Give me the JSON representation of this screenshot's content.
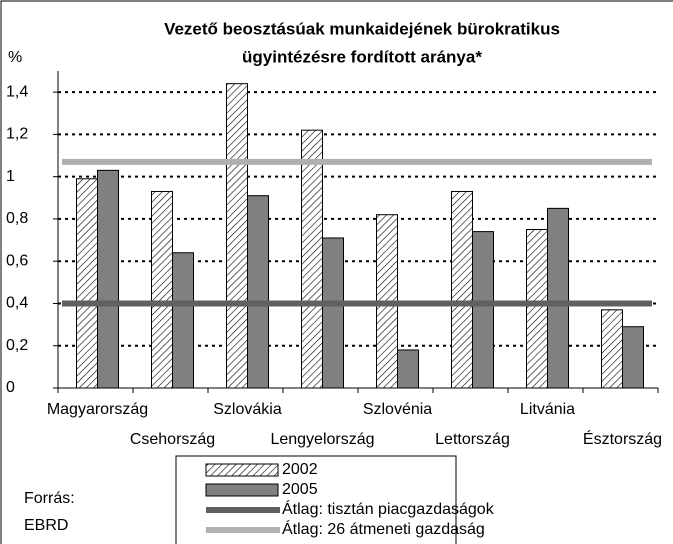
{
  "chart_data": {
    "type": "bar",
    "title": [
      "Vezető beosztásúak munkaidejének bürokratikus",
      "ügyintézésre fordított aránya*"
    ],
    "y_label": "%",
    "categories": [
      "Magyarország",
      "Csehország",
      "Szlovákia",
      "Lengyelország",
      "Szlovénia",
      "Lettország",
      "Litvánia",
      "Észtország"
    ],
    "series": [
      {
        "name": "2002",
        "color": "#ffffff",
        "values": [
          0.99,
          0.93,
          1.44,
          1.22,
          0.82,
          0.93,
          0.75,
          0.37
        ]
      },
      {
        "name": "2005",
        "color": "#808080",
        "values": [
          1.03,
          0.64,
          0.91,
          0.71,
          0.18,
          0.74,
          0.85,
          0.29
        ]
      }
    ],
    "reference_lines": [
      {
        "name": "Átlag: tisztán piacgazdaságok",
        "value": 0.4,
        "color": "#606060"
      },
      {
        "name": "Átlag: 26 átmeneti gazdaság",
        "value": 1.07,
        "color": "#b0b0b0"
      }
    ],
    "ylim": [
      0,
      1.5
    ],
    "yticks": [
      0,
      {
        "value": 0.2,
        "label": "0,2"
      },
      {
        "value": 0.4,
        "label": "0,4"
      },
      {
        "value": 0.6,
        "label": "0,6"
      },
      {
        "value": 0.8,
        "label": "0,8"
      },
      1,
      {
        "value": 1.2,
        "label": "1,2"
      },
      {
        "value": 1.4,
        "label": "1,4"
      }
    ],
    "grid": true,
    "source": [
      "Forrás:",
      "EBRD"
    ]
  }
}
